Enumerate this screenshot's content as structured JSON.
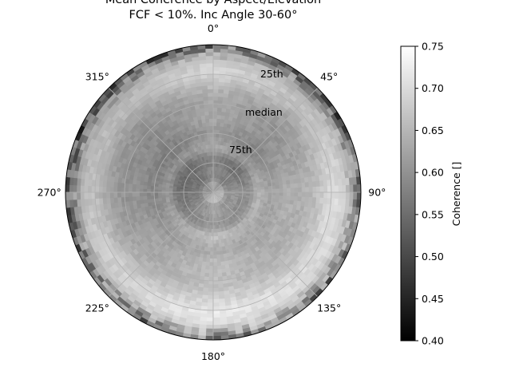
{
  "chart_data": {
    "type": "heatmap",
    "projection": "polar",
    "title_line1": "Mean Coherence by Aspect/Elevation",
    "title_line2": "FCF < 10%. Inc Angle 30-60°",
    "angular_ticks": [
      "0°",
      "45°",
      "90°",
      "135°",
      "180°",
      "225°",
      "270°",
      "315°"
    ],
    "angular_tick_degrees": [
      0,
      45,
      90,
      135,
      180,
      225,
      270,
      315
    ],
    "ring_labels": [
      "25th",
      "median",
      "75th"
    ],
    "ring_label_angle_deg": 35,
    "grid": true,
    "colormap": "gray",
    "colorbar": {
      "label": "Coherence []",
      "vmin": 0.4,
      "vmax": 0.75,
      "ticks": [
        "0.40",
        "0.45",
        "0.50",
        "0.55",
        "0.60",
        "0.65",
        "0.70",
        "0.75"
      ],
      "tick_values": [
        0.4,
        0.45,
        0.5,
        0.55,
        0.6,
        0.65,
        0.7,
        0.75
      ]
    },
    "radial_profile": [
      {
        "r": 0.0,
        "value": 0.62
      },
      {
        "r": 0.06,
        "value": 0.63
      },
      {
        "r": 0.1,
        "value": 0.58
      },
      {
        "r": 0.15,
        "value": 0.59
      },
      {
        "r": 0.2,
        "value": 0.57
      },
      {
        "r": 0.25,
        "value": 0.58
      },
      {
        "r": 0.3,
        "value": 0.63
      },
      {
        "r": 0.35,
        "value": 0.61
      },
      {
        "r": 0.4,
        "value": 0.6
      },
      {
        "r": 0.45,
        "value": 0.61
      },
      {
        "r": 0.5,
        "value": 0.62
      },
      {
        "r": 0.55,
        "value": 0.62
      },
      {
        "r": 0.6,
        "value": 0.62
      },
      {
        "r": 0.65,
        "value": 0.63
      },
      {
        "r": 0.7,
        "value": 0.64
      },
      {
        "r": 0.75,
        "value": 0.66
      },
      {
        "r": 0.8,
        "value": 0.68
      },
      {
        "r": 0.85,
        "value": 0.68
      },
      {
        "r": 0.9,
        "value": 0.66
      },
      {
        "r": 0.95,
        "value": 0.6
      },
      {
        "r": 1.0,
        "value": 0.53
      }
    ],
    "aspect_modulation": [
      {
        "angle_deg": 0,
        "delta": 0.01
      },
      {
        "angle_deg": 45,
        "delta": -0.02
      },
      {
        "angle_deg": 90,
        "delta": 0.02
      },
      {
        "angle_deg": 135,
        "delta": 0.02
      },
      {
        "angle_deg": 180,
        "delta": 0.04
      },
      {
        "angle_deg": 225,
        "delta": 0.01
      },
      {
        "angle_deg": 270,
        "delta": -0.02
      },
      {
        "angle_deg": 315,
        "delta": -0.03
      }
    ]
  }
}
